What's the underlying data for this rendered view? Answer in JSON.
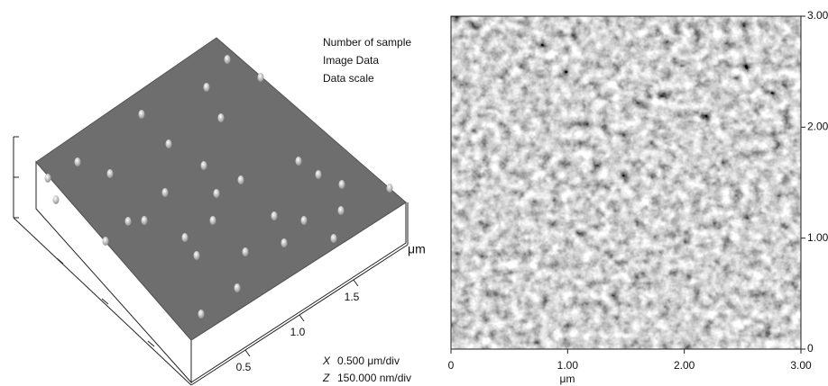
{
  "left_panel": {
    "info": [
      "Number of sample",
      "Image Data",
      "Data scale"
    ],
    "axis_unit": "μm",
    "ticks": [
      0.5,
      {
        "value": 1,
        "label": "1.0"
      },
      1.5
    ],
    "scale_x_symbol": "X",
    "scale_x": "0.500 μm/div",
    "scale_z_symbol": "Z",
    "scale_z": "150.000 nm/div"
  },
  "right_panel": {
    "x_label": "μm",
    "xlim": [
      0,
      3
    ],
    "ylim": [
      0,
      3
    ],
    "xticks": [
      0,
      {
        "value": 1,
        "label": "1.00"
      },
      {
        "value": 2,
        "label": "2.00"
      },
      {
        "value": 3,
        "label": "3.00"
      }
    ],
    "yticks": [
      0,
      {
        "value": 1,
        "label": "1.00"
      },
      {
        "value": 2,
        "label": "2.00"
      },
      {
        "value": 3,
        "label": "3.00"
      }
    ]
  }
}
